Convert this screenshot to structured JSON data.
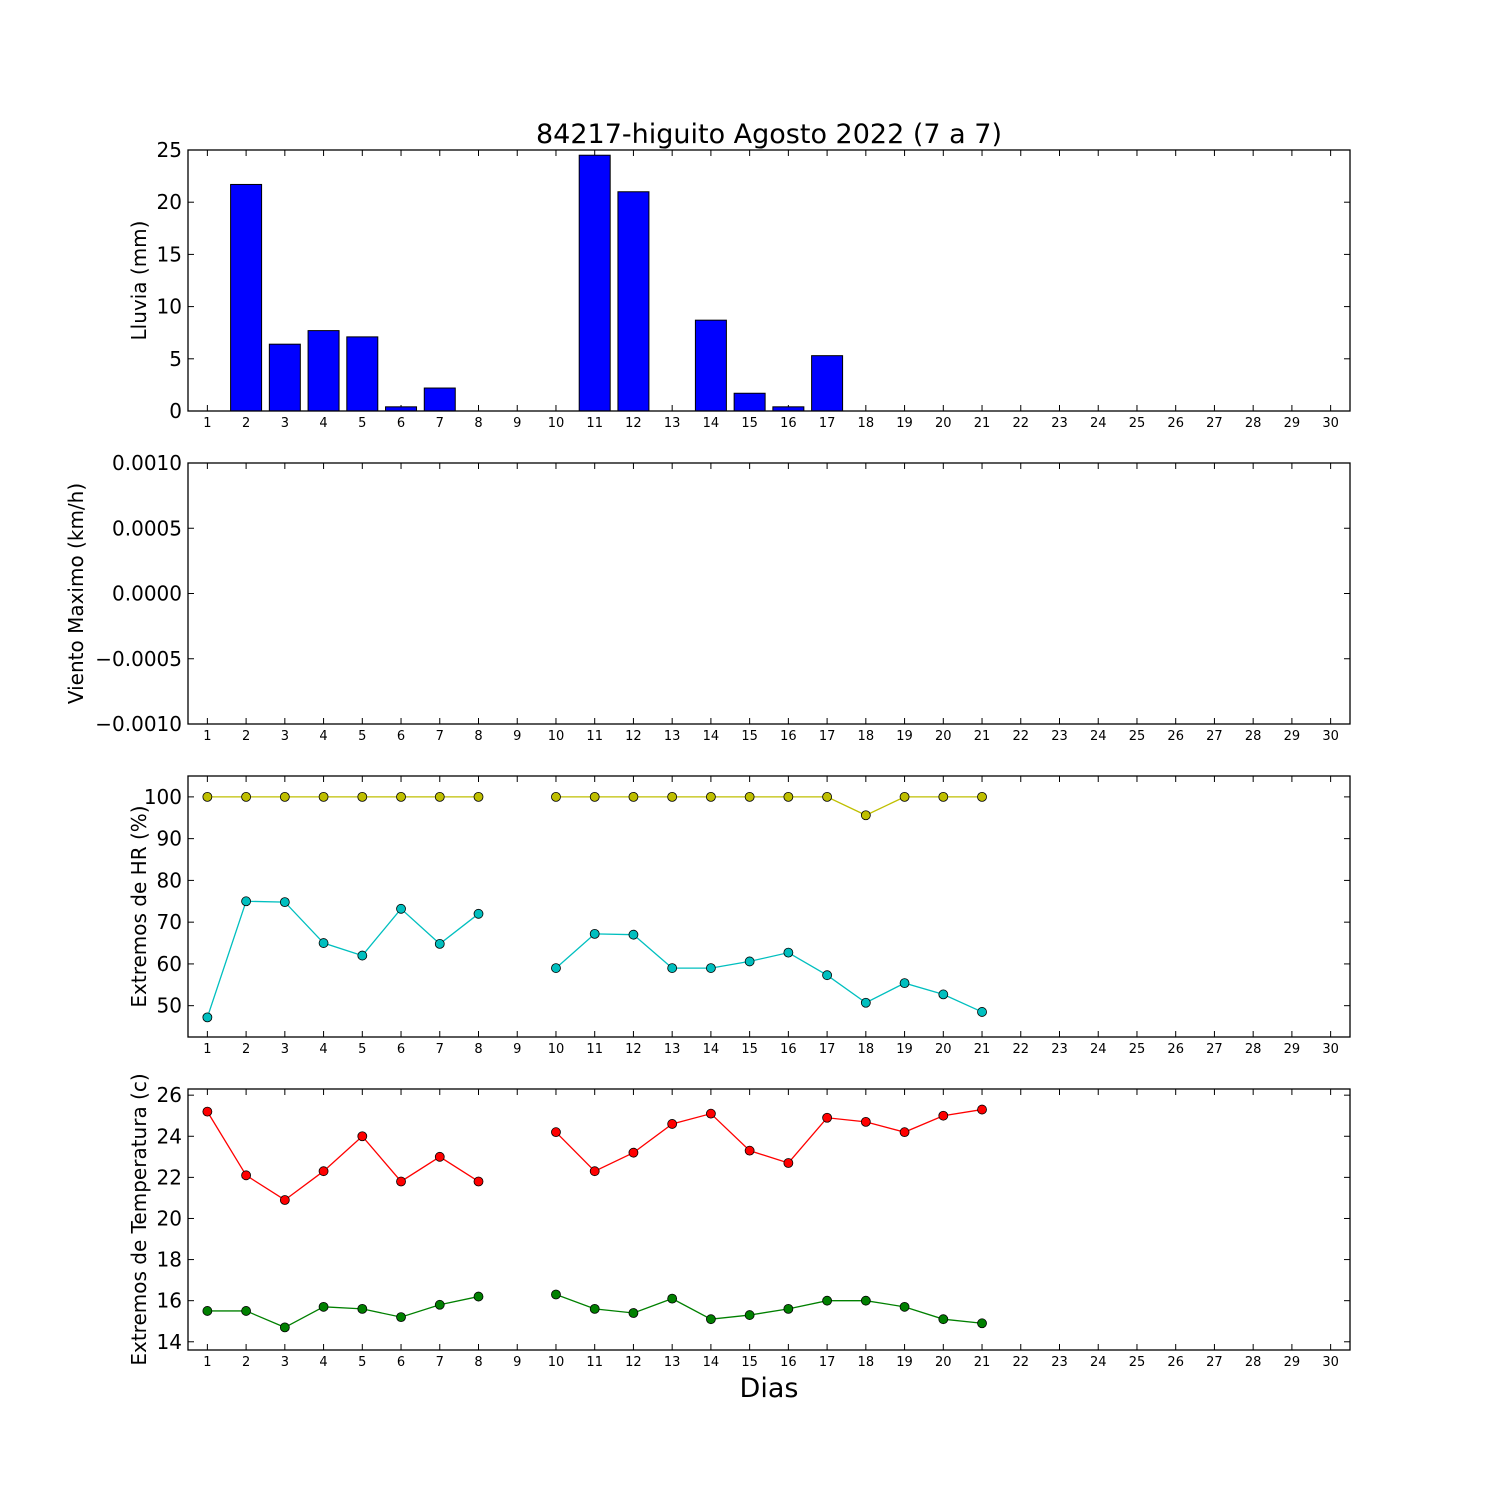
{
  "chart_data": [
    {
      "type": "bar",
      "title": "84217-higuito Agosto 2022  (7 a 7)",
      "ylabel": "Lluvia (mm)",
      "ylim": [
        0,
        25
      ],
      "yticks": [
        "0",
        "5",
        "10",
        "15",
        "20",
        "25"
      ],
      "x": [
        1,
        2,
        3,
        4,
        5,
        6,
        7,
        8,
        9,
        10,
        11,
        12,
        13,
        14,
        15,
        16,
        17,
        18,
        19,
        20,
        21,
        22,
        23,
        24,
        25,
        26,
        27,
        28,
        29,
        30
      ],
      "values": [
        0,
        21.7,
        6.4,
        7.7,
        7.1,
        0.4,
        2.2,
        0,
        0,
        0,
        24.5,
        21.0,
        0,
        8.7,
        1.7,
        0.4,
        5.3,
        0,
        0,
        0,
        0,
        null,
        null,
        null,
        null,
        null,
        null,
        null,
        null,
        null
      ],
      "color": "#0000ff",
      "grid": false
    },
    {
      "type": "line",
      "ylabel": "Viento Maximo (km/h)",
      "ylim": [
        -0.001,
        0.001
      ],
      "yticks": [
        "−0.0010",
        "−0.0005",
        "0.0000",
        "0.0005",
        "0.0010"
      ],
      "x": [
        1,
        2,
        3,
        4,
        5,
        6,
        7,
        8,
        9,
        10,
        11,
        12,
        13,
        14,
        15,
        16,
        17,
        18,
        19,
        20,
        21,
        22,
        23,
        24,
        25,
        26,
        27,
        28,
        29,
        30
      ],
      "series": [],
      "grid": false
    },
    {
      "type": "line",
      "ylabel": "Extremos de HR (%)",
      "ylim": [
        42.5,
        105
      ],
      "yticks": [
        "50",
        "60",
        "70",
        "80",
        "90",
        "100"
      ],
      "x": [
        1,
        2,
        3,
        4,
        5,
        6,
        7,
        8,
        9,
        10,
        11,
        12,
        13,
        14,
        15,
        16,
        17,
        18,
        19,
        20,
        21,
        22,
        23,
        24,
        25,
        26,
        27,
        28,
        29,
        30
      ],
      "series": [
        {
          "color": "#bfbf00",
          "values": [
            100,
            100,
            100,
            100,
            100,
            100,
            100,
            100,
            null,
            100,
            100,
            100,
            100,
            100,
            100,
            100,
            100,
            95.6,
            100,
            100,
            100,
            null,
            null,
            null,
            null,
            null,
            null,
            null,
            null,
            null
          ]
        },
        {
          "color": "#00bfbf",
          "values": [
            47.2,
            75,
            74.8,
            65,
            62,
            73.2,
            64.8,
            72,
            null,
            59,
            67.2,
            67,
            59,
            59,
            60.6,
            62.7,
            57.3,
            50.7,
            55.4,
            52.7,
            48.5,
            null,
            null,
            null,
            null,
            null,
            null,
            null,
            null,
            null
          ]
        }
      ],
      "grid": false
    },
    {
      "type": "line",
      "ylabel": "Extremos de Temperatura (c)",
      "xlabel": "Dias",
      "ylim": [
        13.6,
        26.3
      ],
      "yticks": [
        "14",
        "16",
        "18",
        "20",
        "22",
        "24",
        "26"
      ],
      "x": [
        1,
        2,
        3,
        4,
        5,
        6,
        7,
        8,
        9,
        10,
        11,
        12,
        13,
        14,
        15,
        16,
        17,
        18,
        19,
        20,
        21,
        22,
        23,
        24,
        25,
        26,
        27,
        28,
        29,
        30
      ],
      "series": [
        {
          "color": "#ff0000",
          "values": [
            25.2,
            22.1,
            20.9,
            22.3,
            24.0,
            21.8,
            23.0,
            21.8,
            null,
            24.2,
            22.3,
            23.2,
            24.6,
            25.1,
            23.3,
            22.7,
            24.9,
            24.7,
            24.2,
            25.0,
            25.3,
            null,
            null,
            null,
            null,
            null,
            null,
            null,
            null,
            null
          ]
        },
        {
          "color": "#008000",
          "values": [
            15.5,
            15.5,
            14.7,
            15.7,
            15.6,
            15.2,
            15.8,
            16.2,
            null,
            16.3,
            15.6,
            15.4,
            16.1,
            15.1,
            15.3,
            15.6,
            16.0,
            16.0,
            15.7,
            15.1,
            14.9,
            null,
            null,
            null,
            null,
            null,
            null,
            null,
            null,
            null
          ]
        }
      ],
      "grid": false
    }
  ]
}
